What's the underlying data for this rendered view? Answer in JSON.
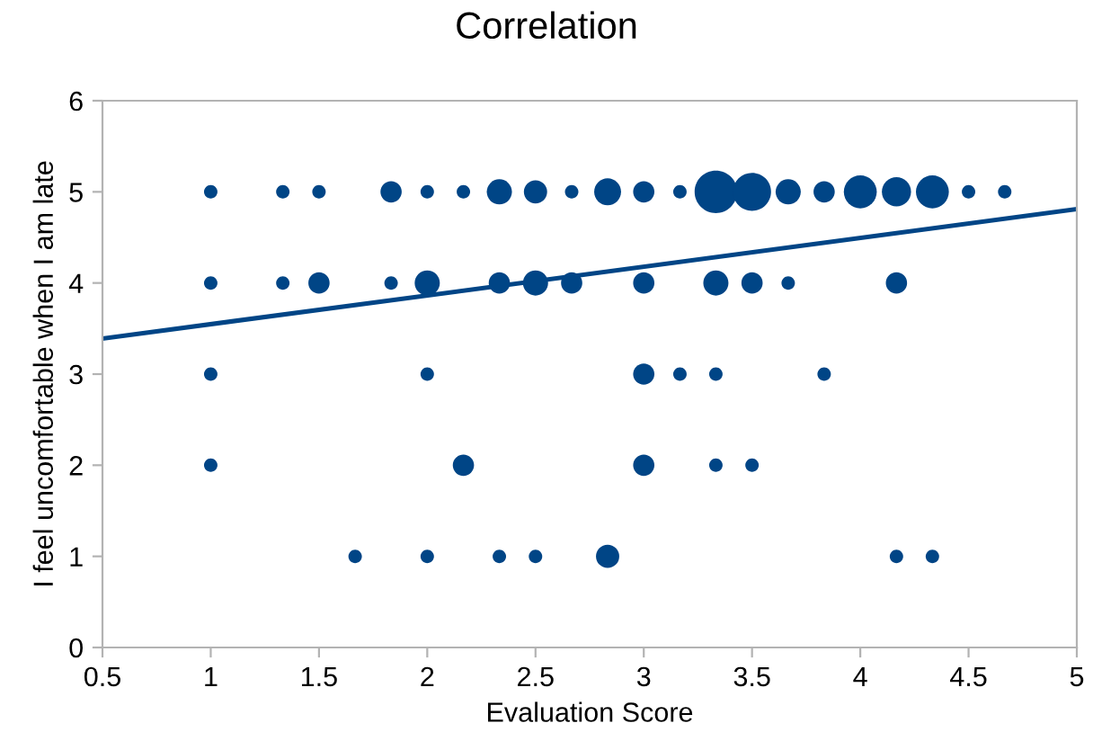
{
  "chart_data": {
    "type": "bubble",
    "title": "Correlation",
    "xlabel": "Evaluation Score",
    "ylabel": "I feel uncomfortable when I am late",
    "xlim": [
      0.5,
      5
    ],
    "xticks": [
      0.5,
      1,
      1.5,
      2,
      2.5,
      3,
      3.5,
      4,
      4.5,
      5
    ],
    "ylim": [
      0,
      6
    ],
    "yticks": [
      0,
      1,
      2,
      3,
      4,
      5,
      6
    ],
    "grid": false,
    "legend": false,
    "series": [
      {
        "color": "#004586",
        "x": [
          1,
          1.333,
          1.5,
          1.833,
          2,
          2.167,
          2.333,
          2.5,
          2.667,
          2.833,
          3,
          3.167,
          3.333,
          3.5,
          3.667,
          3.833,
          4,
          4.167,
          4.333,
          4.5,
          4.667,
          1,
          1.333,
          1.5,
          1.833,
          2,
          2.333,
          2.5,
          2.667,
          3,
          3.333,
          3.5,
          3.667,
          4.167,
          1,
          2,
          3,
          3.167,
          3.333,
          3.833,
          1,
          2.167,
          3,
          3.333,
          3.5,
          1.667,
          2,
          2.333,
          2.5,
          2.833,
          4.167,
          4.333
        ],
        "values": [
          5,
          5,
          5,
          5,
          5,
          5,
          5,
          5,
          5,
          5,
          5,
          5,
          5,
          5,
          5,
          5,
          5,
          5,
          5,
          5,
          5,
          4,
          4,
          4,
          4,
          4,
          4,
          4,
          4,
          4,
          4,
          4,
          4,
          4,
          3,
          3,
          3,
          3,
          3,
          3,
          2,
          2,
          2,
          2,
          2,
          1,
          1,
          1,
          1,
          1,
          1,
          1
        ],
        "sizes": [
          0.1,
          0.1,
          0.1,
          0.25,
          0.1,
          0.1,
          0.35,
          0.3,
          0.1,
          0.4,
          0.25,
          0.1,
          1,
          0.8,
          0.35,
          0.25,
          0.6,
          0.47,
          0.6,
          0.1,
          0.1,
          0.1,
          0.1,
          0.25,
          0.1,
          0.35,
          0.25,
          0.35,
          0.25,
          0.25,
          0.35,
          0.25,
          0.1,
          0.25,
          0.1,
          0.1,
          0.25,
          0.1,
          0.1,
          0.1,
          0.1,
          0.25,
          0.25,
          0.1,
          0.1,
          0.1,
          0.1,
          0.1,
          0.1,
          0.3,
          0.1,
          0.1
        ]
      },
      {
        "type": "line",
        "color": "#004586",
        "x": [
          0.5,
          5
        ],
        "values": [
          3.39,
          4.81
        ]
      }
    ]
  }
}
